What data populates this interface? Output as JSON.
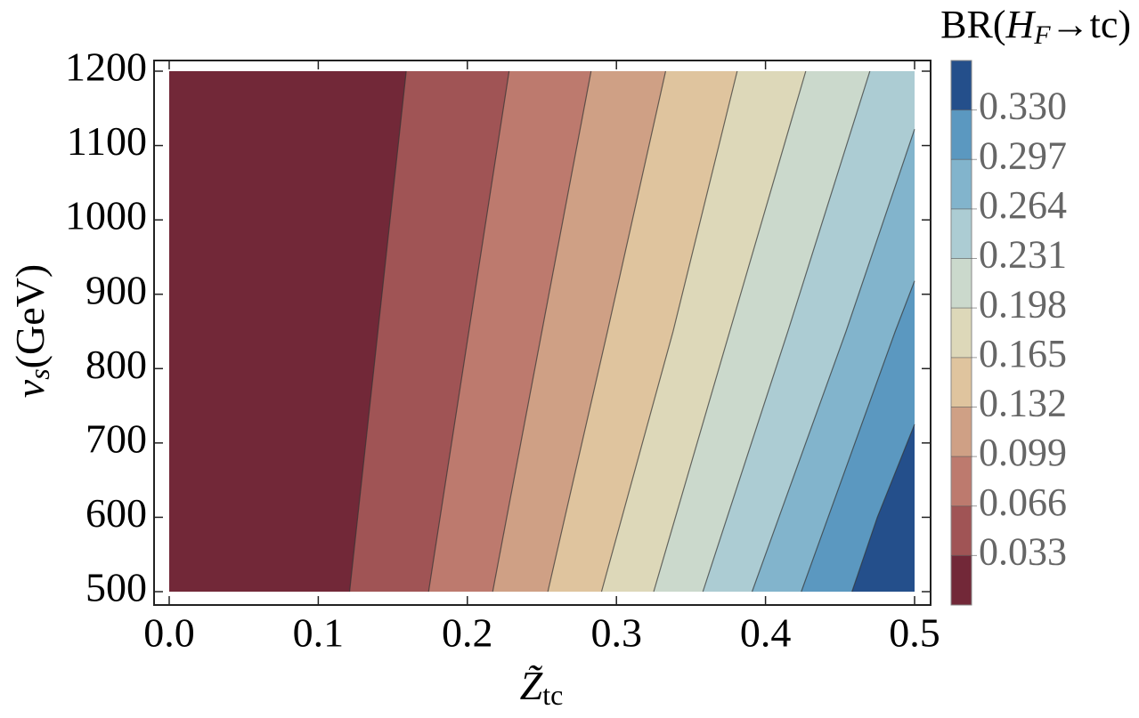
{
  "chart_data": {
    "type": "contour",
    "x_label": {
      "main": "Z̃",
      "sub": "tc"
    },
    "y_label": {
      "main": "v",
      "sub": "s",
      "rest": "(GeV)"
    },
    "colorbar_title": {
      "pre": "BR(",
      "main": "H",
      "sub": "F",
      "post": "→tc)"
    },
    "xlim": [
      0,
      0.5
    ],
    "ylim": [
      500,
      1200
    ],
    "xticks": [
      {
        "value": 0,
        "label": "0.0"
      },
      0.1,
      0.2,
      0.3,
      0.4,
      0.5
    ],
    "yticks": [
      500,
      600,
      700,
      800,
      900,
      1000,
      1100,
      1200
    ],
    "clim": [
      0,
      0.363
    ],
    "cticks": [
      0.033,
      0.066,
      0.099,
      0.132,
      0.165,
      0.198,
      0.231,
      0.264,
      0.297,
      {
        "value": 0.33,
        "label": "0.330"
      }
    ],
    "colors": [
      "#722838",
      "#a05455",
      "#bd7a6e",
      "#cfa085",
      "#dfc49e",
      "#ddd8b9",
      "#cbd9cc",
      "#acccd3",
      "#82b4cc",
      "#5b98c0",
      "#244f8b"
    ],
    "contours": [
      {
        "x": [
          0.121,
          0.14,
          0.159
        ],
        "y": [
          500,
          850,
          1200
        ]
      },
      {
        "x": [
          0.174,
          0.201,
          0.228
        ],
        "y": [
          500,
          850,
          1200
        ]
      },
      {
        "x": [
          0.217,
          0.25,
          0.283
        ],
        "y": [
          500,
          850,
          1200
        ]
      },
      {
        "x": [
          0.254,
          0.294,
          0.333
        ],
        "y": [
          500,
          850,
          1200
        ]
      },
      {
        "x": [
          0.29,
          0.338,
          0.381
        ],
        "y": [
          500,
          850,
          1200
        ]
      },
      {
        "x": [
          0.325,
          0.376,
          0.427
        ],
        "y": [
          500,
          850,
          1200
        ]
      },
      {
        "x": [
          0.358,
          0.415,
          0.47
        ],
        "y": [
          500,
          850,
          1200
        ]
      },
      {
        "x": [
          0.391,
          0.454,
          0.5
        ],
        "y": [
          500,
          850,
          1122
        ]
      },
      {
        "x": [
          0.424,
          0.487,
          0.5
        ],
        "y": [
          500,
          850,
          918
        ]
      },
      {
        "x": [
          0.458,
          0.475,
          0.5
        ],
        "y": [
          500,
          600,
          725
        ]
      }
    ]
  }
}
